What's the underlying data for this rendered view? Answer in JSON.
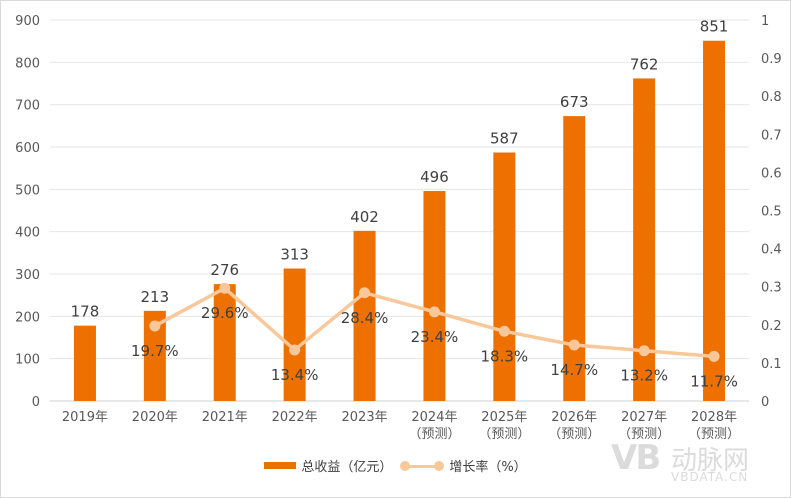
{
  "chart_data": {
    "type": "bar+line",
    "categories": [
      "2019年",
      "2020年",
      "2021年",
      "2022年",
      "2023年",
      "2024年\n（预测）",
      "2025年\n（预测）",
      "2026年\n（预测）",
      "2027年\n（预测）",
      "2028年\n（预测）"
    ],
    "series": [
      {
        "name": "总收益（亿元）",
        "type": "bar",
        "axis": "left",
        "color": "#ED7000",
        "values": [
          178,
          213,
          276,
          313,
          402,
          496,
          587,
          673,
          762,
          851
        ],
        "labels": [
          "178",
          "213",
          "276",
          "313",
          "402",
          "496",
          "587",
          "673",
          "762",
          "851"
        ]
      },
      {
        "name": "增长率（%）",
        "type": "line",
        "axis": "right",
        "color": "#F8C89A",
        "values": [
          null,
          0.197,
          0.296,
          0.134,
          0.284,
          0.234,
          0.183,
          0.147,
          0.132,
          0.117
        ],
        "labels": [
          "",
          "19.7%",
          "29.6%",
          "13.4%",
          "28.4%",
          "23.4%",
          "18.3%",
          "14.7%",
          "13.2%",
          "11.7%"
        ]
      }
    ],
    "ylim_left": [
      0,
      900
    ],
    "yticks_left": [
      "0",
      "100",
      "200",
      "300",
      "400",
      "500",
      "600",
      "700",
      "800",
      "900"
    ],
    "ylim_right": [
      0,
      1
    ],
    "yticks_right": [
      "0",
      "0.1",
      "0.2",
      "0.3",
      "0.4",
      "0.5",
      "0.6",
      "0.7",
      "0.8",
      "0.9",
      "1"
    ],
    "grid": true,
    "legend_position": "bottom"
  },
  "legend": {
    "bar": "总收益（亿元）",
    "line": "增长率（%）"
  },
  "watermark": {
    "logo": "VB",
    "cn": "动脉网",
    "url": "VBDATA.CN"
  }
}
